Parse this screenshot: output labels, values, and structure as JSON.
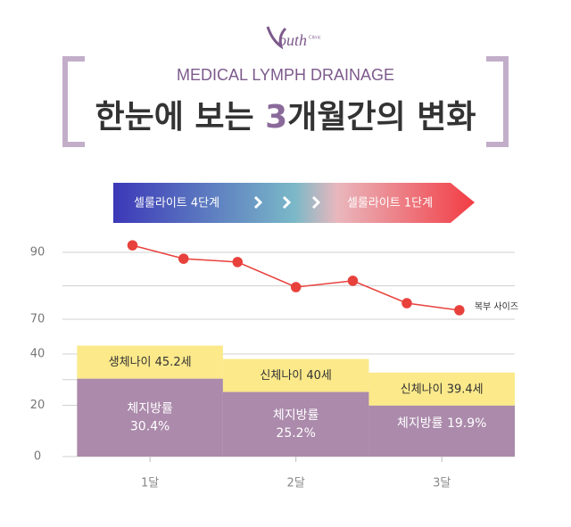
{
  "logo": {
    "mark": "outh",
    "sub": "Clinic"
  },
  "header": {
    "subtitle": "MEDICAL LYMPH DRAINAGE",
    "title_parts": [
      "한눈에 보는 ",
      "3",
      "개월간의 변화"
    ]
  },
  "banner": {
    "start": "셀룰라이트 4단계",
    "end": "셀룰라이트 1단계"
  },
  "chart_data": [
    {
      "type": "line",
      "x": [
        0.88,
        1.23,
        1.6,
        2.0,
        2.39,
        2.76,
        3.12
      ],
      "series": [
        {
          "name": "복부 사이즈",
          "color": "#e8413c",
          "values": [
            92.1,
            88.1,
            87.1,
            79.6,
            81.5,
            74.8,
            72.7
          ]
        }
      ],
      "xlim": [
        0.4,
        3.5
      ],
      "xticks": [
        {
          "value": 1,
          "label": "1달"
        },
        {
          "value": 2,
          "label": "2달"
        },
        {
          "value": 3,
          "label": "3달"
        }
      ],
      "ylim": [
        62,
        94
      ],
      "yticks": [
        70,
        90
      ],
      "minor_yticks": [
        80
      ],
      "grid": true
    },
    {
      "type": "bar",
      "x": [
        1,
        2,
        3
      ],
      "ylim": [
        0,
        42
      ],
      "yticks": [
        0,
        20,
        40
      ],
      "minor_yticks": [
        30
      ],
      "grid": true,
      "series": [
        {
          "color": "#ab8aab",
          "values": [
            30.4,
            25.2,
            19.9
          ],
          "value_labels": [
            [
              "체지방률",
              "30.4%"
            ],
            [
              "체지방률",
              "25.2%"
            ],
            [
              "체지방률 19.9%"
            ]
          ]
        },
        {
          "color": "#fbe98a",
          "values": [
            45.2,
            40,
            39.4
          ],
          "value_labels": [
            "생체나이 45.2세",
            "신체나이 40세",
            "신체나이 39.4세"
          ]
        }
      ]
    }
  ]
}
